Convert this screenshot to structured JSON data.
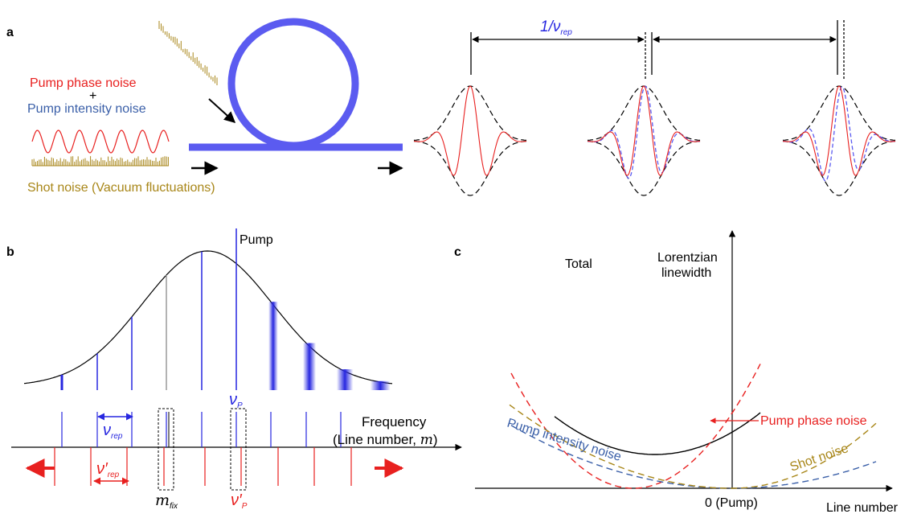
{
  "colors": {
    "ring": "#5b5bf0",
    "pump_phase": "#e8201f",
    "pump_intensity": "#3a5fa8",
    "shot": "#a88618",
    "spectral_line": "#2727e0",
    "black": "#000000"
  },
  "panel_a": {
    "label": "a",
    "pump_phase_noise": "Pump phase noise",
    "plus": "+",
    "pump_intensity_noise": "Pump intensity noise",
    "shot_noise": "Shot noise (Vacuum fluctuations)",
    "period": "1/ν",
    "period_sub": "rep"
  },
  "panel_b": {
    "label": "b",
    "pump": "Pump",
    "nu_p": "ν",
    "nu_p_sub": "P",
    "frequency": "Frequency",
    "line_number": "(Line number, ",
    "m": "m",
    "close": ")",
    "nu_rep": "ν",
    "nu_rep_sub": "rep",
    "nu_rep_prime": "ν′",
    "m_fix": "m",
    "m_fix_sub": "fix",
    "nu_p_prime": "ν′",
    "nu_p_prime_sub": "P"
  },
  "panel_c": {
    "label": "c",
    "total": "Total",
    "lorentzian": "Lorentzian",
    "linewidth": "linewidth",
    "pump_phase_noise": "Pump phase noise",
    "pump_intensity_noise": "Pump intensity noise",
    "shot_noise": "Shot noise",
    "zero_pump": "0 (Pump)",
    "line_number": "Line number"
  }
}
